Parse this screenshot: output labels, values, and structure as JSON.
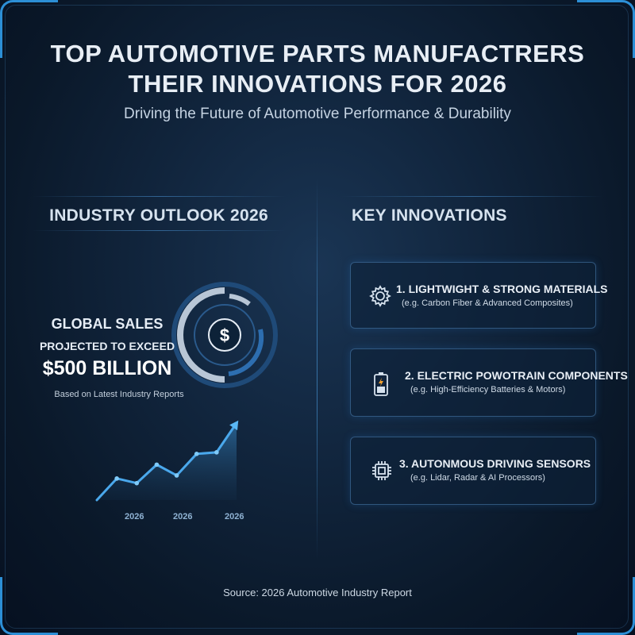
{
  "header": {
    "title_line1": "TOP AUTOMOTIVE PARTS MANUFACTRERS",
    "title_line2": "THEIR INNOVATIONS FOR 2026",
    "subtitle": "Driving the Future of Automotive Performance & Durability"
  },
  "outlook": {
    "heading": "INDUSTRY OUTLOOK 2026",
    "sales_label": "GLOBAL SALES",
    "projected_label": "PROJECTED TO EXCEED",
    "amount": "$500 BILLION",
    "note": "Based on Latest Industry Reports",
    "icon": "dollar-icon"
  },
  "chart_data": {
    "type": "area",
    "tick_labels": [
      "2026",
      "2026",
      "2026"
    ],
    "values": [
      0,
      1.4,
      1.1,
      2.3,
      1.6,
      3.0,
      3.1,
      5.0
    ]
  },
  "innovations": {
    "heading": "KEY INNOVATIONS",
    "items": [
      {
        "title": "1. LIGHTWIGHT & STRONG MATERIALS",
        "desc": "(e.g. Carbon Fiber & Advanced Composites)",
        "icon": "gear-icon"
      },
      {
        "title": "2. ELECTRIC POWOTRAIN COMPONENTS",
        "desc": "(e.g. High-Efficiency Batteries & Motors)",
        "icon": "battery-icon"
      },
      {
        "title": "3. AUTONMOUS DRIVING SENSORS",
        "desc": "(e.g. Lidar, Radar & AI Processors)",
        "icon": "chip-icon"
      }
    ]
  },
  "footer": {
    "source": "Source: 2026 Automotive Industry Report"
  },
  "colors": {
    "accent": "#3a9be0",
    "background": "#0d1f34",
    "text": "#e8eef5"
  }
}
